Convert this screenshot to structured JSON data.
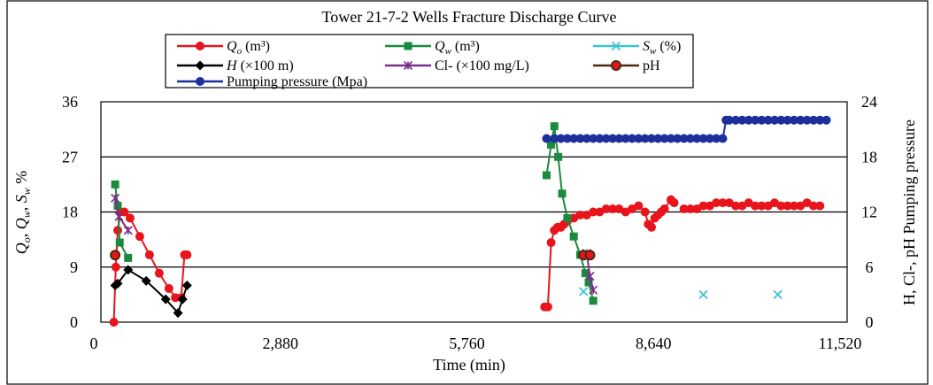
{
  "chart_data": {
    "type": "line",
    "title": "Tower 21-7-2 Wells Fracture Discharge Curve",
    "xlabel": "Time (min)",
    "ylabel_left": {
      "q": "Q",
      "q_sub1": "o",
      "sep1": ", ",
      "q2": "Q",
      "q_sub2": "w",
      "sep2": ", ",
      "s": "S",
      "s_sub": "w",
      "pct": " %"
    },
    "ylabel_right": "H,  Cl-,  pH   Pumping pressure",
    "xlim": [
      0,
      11520
    ],
    "x_ticks": [
      0,
      2880,
      5760,
      8640,
      11520
    ],
    "x_tick_labels": [
      "0",
      "2,880",
      "5,760",
      "8,640",
      "11,520"
    ],
    "ylim_left": [
      0,
      36
    ],
    "y_ticks_left": [
      0,
      9,
      18,
      27,
      36
    ],
    "y_tick_labels_left": [
      "0",
      "9",
      "18",
      "27",
      "36"
    ],
    "ylim_right": [
      0,
      24
    ],
    "y_ticks_right": [
      0,
      6,
      12,
      18,
      24
    ],
    "y_tick_labels_right": [
      "0",
      "6",
      "12",
      "18",
      "24"
    ],
    "grid": "horizontal",
    "legend_placement": "top",
    "legend": [
      {
        "label": "Q",
        "sub": "o",
        "suffix": " (m³)",
        "color": "#e8141c",
        "marker": "circle"
      },
      {
        "label": "Q",
        "sub": "w",
        "suffix": " (m³)",
        "color": "#1a8a3c",
        "marker": "square"
      },
      {
        "label": "S",
        "sub": "w",
        "suffix": " (%)",
        "color": "#3cc4d4",
        "marker": "x"
      },
      {
        "label": "H",
        "sub": "",
        "suffix": " (×100 m)",
        "color": "#000000",
        "marker": "diamond"
      },
      {
        "label": "Cl",
        "sub": "",
        "suffix": "- (×100 mg/L)",
        "color": "#7a2f8c",
        "marker": "star"
      },
      {
        "label": "pH",
        "sub": "",
        "suffix": "",
        "color": "#4a2a10",
        "marker": "circle-red"
      },
      {
        "label": "Pumping pressure (Mpa)",
        "sub": "",
        "suffix": "",
        "color": "#1c2f9a",
        "marker": "circle"
      }
    ],
    "series": [
      {
        "name": "Qo (m³)",
        "axis": "left",
        "color": "#e8141c",
        "marker": "circle",
        "segments": [
          [
            [
              200,
              0
            ],
            [
              230,
              9
            ],
            [
              260,
              15
            ],
            [
              300,
              18
            ],
            [
              360,
              18
            ],
            [
              450,
              17
            ],
            [
              600,
              14
            ],
            [
              750,
              11
            ],
            [
              900,
              8
            ],
            [
              1050,
              5.5
            ],
            [
              1150,
              4
            ],
            [
              1240,
              4
            ],
            [
              1290,
              11
            ],
            [
              1330,
              11
            ]
          ],
          [
            [
              6850,
              2.5
            ],
            [
              6900,
              2.5
            ],
            [
              6950,
              13
            ],
            [
              7000,
              15
            ],
            [
              7050,
              15.5
            ],
            [
              7100,
              15.5
            ],
            [
              7150,
              16
            ],
            [
              7200,
              16.5
            ],
            [
              7300,
              17
            ],
            [
              7400,
              17.5
            ],
            [
              7500,
              17.5
            ],
            [
              7600,
              18
            ],
            [
              7700,
              18
            ],
            [
              7800,
              18.5
            ],
            [
              7900,
              18.5
            ],
            [
              8000,
              18.5
            ],
            [
              8100,
              18
            ],
            [
              8200,
              18.5
            ],
            [
              8300,
              19
            ],
            [
              8400,
              18
            ],
            [
              8450,
              16
            ],
            [
              8500,
              15.5
            ],
            [
              8550,
              17
            ],
            [
              8600,
              17.5
            ],
            [
              8650,
              18
            ],
            [
              8700,
              18.5
            ],
            [
              8800,
              20
            ],
            [
              8850,
              19.5
            ]
          ],
          [
            [
              9000,
              18.5
            ],
            [
              9100,
              18.5
            ],
            [
              9200,
              18.5
            ],
            [
              9300,
              19
            ],
            [
              9400,
              19
            ],
            [
              9500,
              19.5
            ],
            [
              9600,
              19.5
            ],
            [
              9700,
              19.5
            ],
            [
              9800,
              19
            ],
            [
              9900,
              19
            ],
            [
              10000,
              19.5
            ],
            [
              10100,
              19
            ],
            [
              10200,
              19
            ],
            [
              10300,
              19
            ],
            [
              10400,
              19.5
            ],
            [
              10500,
              19
            ],
            [
              10600,
              19
            ],
            [
              10700,
              19
            ],
            [
              10800,
              19
            ],
            [
              10900,
              19.5
            ],
            [
              11000,
              19
            ],
            [
              11100,
              19
            ]
          ]
        ]
      },
      {
        "name": "Qw (m³)",
        "axis": "left",
        "color": "#1a8a3c",
        "marker": "square",
        "segments": [
          [
            [
              220,
              22.5
            ],
            [
              260,
              19
            ],
            [
              290,
              13
            ],
            [
              420,
              10.5
            ]
          ],
          [
            [
              6880,
              24
            ],
            [
              6950,
              29
            ],
            [
              7000,
              32
            ],
            [
              7060,
              27
            ],
            [
              7120,
              21
            ],
            [
              7200,
              17
            ],
            [
              7300,
              14
            ],
            [
              7400,
              11
            ],
            [
              7480,
              8
            ],
            [
              7530,
              6.5
            ],
            [
              7600,
              3.5
            ]
          ]
        ]
      },
      {
        "name": "Sw (%)",
        "axis": "left",
        "color": "#3cc4d4",
        "marker": "x",
        "segments": [
          [
            [
              7450,
              5
            ]
          ],
          [
            [
              9300,
              4.5
            ]
          ],
          [
            [
              10450,
              4.5
            ]
          ]
        ]
      },
      {
        "name": "H (×100 m)",
        "axis": "right",
        "color": "#000000",
        "marker": "diamond",
        "segments": [
          [
            [
              220,
              4
            ],
            [
              260,
              4.2
            ],
            [
              420,
              5.7
            ],
            [
              700,
              4.5
            ],
            [
              1000,
              2.5
            ],
            [
              1190,
              1
            ],
            [
              1260,
              2.5
            ],
            [
              1330,
              4
            ]
          ]
        ]
      },
      {
        "name": "Cl- (×100 mg/L)",
        "axis": "right",
        "color": "#7a2f8c",
        "marker": "star",
        "segments": [
          [
            [
              220,
              13.5
            ],
            [
              280,
              11.5
            ],
            [
              420,
              10
            ]
          ],
          [
            [
              7500,
              7.5
            ],
            [
              7550,
              5
            ],
            [
              7600,
              3.5
            ]
          ]
        ]
      },
      {
        "name": "pH",
        "axis": "right",
        "color": "#4a2a10",
        "marker": "circle-red",
        "segments": [
          [
            [
              220,
              7.3
            ]
          ],
          [
            [
              7450,
              7.3
            ],
            [
              7550,
              7.3
            ]
          ]
        ]
      },
      {
        "name": "Pumping pressure (Mpa)",
        "axis": "right",
        "color": "#1c2f9a",
        "marker": "circle",
        "segments": [
          [
            [
              6880,
              20
            ],
            [
              7000,
              20
            ],
            [
              7100,
              20
            ],
            [
              7200,
              20
            ],
            [
              7300,
              20
            ],
            [
              7400,
              20
            ],
            [
              7500,
              20
            ],
            [
              7600,
              20
            ],
            [
              7700,
              20
            ],
            [
              7800,
              20
            ],
            [
              7900,
              20
            ],
            [
              8000,
              20
            ],
            [
              8100,
              20
            ],
            [
              8200,
              20
            ],
            [
              8300,
              20
            ],
            [
              8400,
              20
            ],
            [
              8500,
              20
            ],
            [
              8600,
              20
            ],
            [
              8700,
              20
            ],
            [
              8800,
              20
            ],
            [
              8900,
              20
            ],
            [
              9000,
              20
            ],
            [
              9100,
              20
            ],
            [
              9200,
              20
            ],
            [
              9300,
              20
            ],
            [
              9400,
              20
            ],
            [
              9500,
              20
            ],
            [
              9600,
              20
            ],
            [
              9650,
              22
            ],
            [
              9700,
              22
            ],
            [
              9800,
              22
            ],
            [
              9900,
              22
            ],
            [
              10000,
              22
            ],
            [
              10100,
              22
            ],
            [
              10200,
              22
            ],
            [
              10300,
              22
            ],
            [
              10400,
              22
            ],
            [
              10500,
              22
            ],
            [
              10600,
              22
            ],
            [
              10700,
              22
            ],
            [
              10800,
              22
            ],
            [
              10900,
              22
            ],
            [
              11000,
              22
            ],
            [
              11100,
              22
            ],
            [
              11200,
              22
            ]
          ]
        ]
      }
    ]
  }
}
